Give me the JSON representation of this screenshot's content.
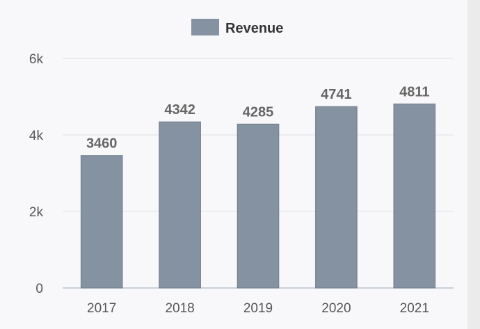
{
  "chart_data": {
    "type": "bar",
    "categories": [
      "2017",
      "2018",
      "2019",
      "2020",
      "2021"
    ],
    "series": [
      {
        "name": "Revenue",
        "values": [
          3460,
          4342,
          4285,
          4741,
          4811
        ]
      }
    ],
    "ylim": [
      0,
      6000
    ],
    "yticks": [
      0,
      2000,
      4000,
      6000
    ],
    "ytick_labels": [
      "0",
      "2k",
      "4k",
      "6k"
    ],
    "grid": true,
    "legend": "top-center",
    "data_labels": true,
    "colors": {
      "bar": "#8592a1",
      "bar_stroke": "#6f7c8b",
      "grid": "#dde1e7",
      "axis": "#b9c2cc",
      "tick_text": "#555555",
      "value_text": "#666666",
      "legend_text": "#333333"
    }
  }
}
